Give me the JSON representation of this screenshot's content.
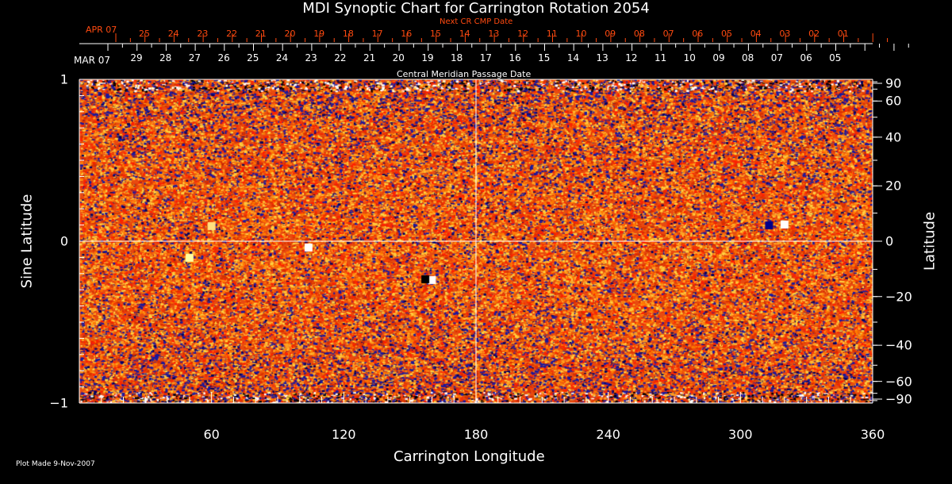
{
  "chart_data": {
    "type": "heatmap",
    "title": "MDI Synoptic Chart for Carrington Rotation 2054",
    "xlabel": "Carrington Longitude",
    "ylabel": "Sine Latitude",
    "y2label": "Latitude",
    "xlim": [
      0,
      360
    ],
    "ylim": [
      -1,
      1
    ],
    "xticks": [
      "60",
      "120",
      "180",
      "240",
      "300",
      "360"
    ],
    "xtick_values": [
      60,
      120,
      180,
      240,
      300,
      360
    ],
    "yticks": [
      "1",
      "0",
      "−1"
    ],
    "ytick_values": [
      1,
      0,
      -1
    ],
    "y2ticks": [
      "90",
      "60",
      "40",
      "20",
      "0",
      "−20",
      "−40",
      "−60",
      "−90"
    ],
    "y2tick_values": [
      90,
      60,
      40,
      20,
      0,
      -20,
      -40,
      -60,
      -90
    ],
    "top_axis_label": "Central Meridian Passage Date",
    "top_axis_month": "MAR 07",
    "top_axis_days": [
      "29",
      "28",
      "27",
      "26",
      "25",
      "24",
      "23",
      "22",
      "21",
      "20",
      "19",
      "18",
      "17",
      "16",
      "15",
      "14",
      "13",
      "12",
      "11",
      "10",
      "09",
      "08",
      "07",
      "06",
      "05"
    ],
    "next_axis_label": "Next CR CMP Date",
    "next_axis_month": "APR 07",
    "next_axis_days": [
      "25",
      "24",
      "23",
      "22",
      "21",
      "20",
      "19",
      "18",
      "17",
      "16",
      "15",
      "14",
      "13",
      "12",
      "11",
      "10",
      "09",
      "08",
      "07",
      "06",
      "05",
      "04",
      "03",
      "02",
      "01"
    ],
    "colors": {
      "positive": "#ffff60",
      "mid": "#ff6000",
      "negative": "#1010a0",
      "axis": "#ffffff",
      "next_axis": "#ff4a10"
    }
  },
  "footer": {
    "plot_made": "Plot Made  9-Nov-2007"
  }
}
